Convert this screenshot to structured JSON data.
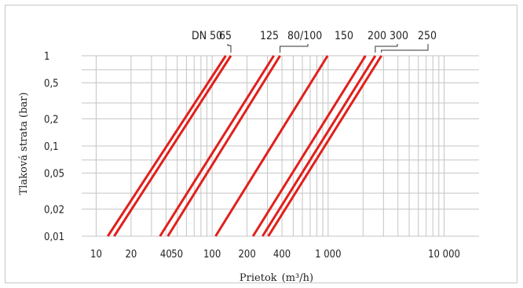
{
  "chart_data": {
    "type": "line",
    "xlabel_base": "Prietok",
    "xlabel_unit": "(m³/h)",
    "ylabel": "Tlaková strata (bar)",
    "x_scale": "log",
    "y_scale": "log",
    "xlim": [
      7.5,
      20000
    ],
    "ylim": [
      0.01,
      1
    ],
    "x_ticks": [
      10,
      20,
      40,
      50,
      100,
      200,
      400,
      1000,
      10000
    ],
    "x_tick_labels": [
      "10",
      "20",
      "40",
      "50",
      "100",
      "200",
      "400",
      "1 000",
      "10 000"
    ],
    "y_ticks": [
      0.01,
      0.02,
      0.05,
      0.1,
      0.2,
      0.5,
      1
    ],
    "y_tick_labels": [
      "0,01",
      "0,02",
      "0,05",
      "0,1",
      "0,2",
      "0,5",
      "1"
    ],
    "grid": true,
    "line_color": "#e0201c",
    "series": [
      {
        "name": "DN 50",
        "x": [
          12.6,
          131
        ]
      },
      {
        "name": "65",
        "x": [
          14.3,
          145
        ]
      },
      {
        "name": "125",
        "x": [
          35.5,
          340
        ]
      },
      {
        "name": "80/100",
        "x": [
          41.5,
          385
        ]
      },
      {
        "name": "150",
        "x": [
          107,
          990
        ]
      },
      {
        "name": "200",
        "x": [
          225,
          2100
        ]
      },
      {
        "name": "300",
        "x": [
          272,
          2550
        ]
      },
      {
        "name": "250",
        "x": [
          305,
          2880
        ]
      }
    ],
    "series_y": [
      0.01,
      1
    ]
  }
}
